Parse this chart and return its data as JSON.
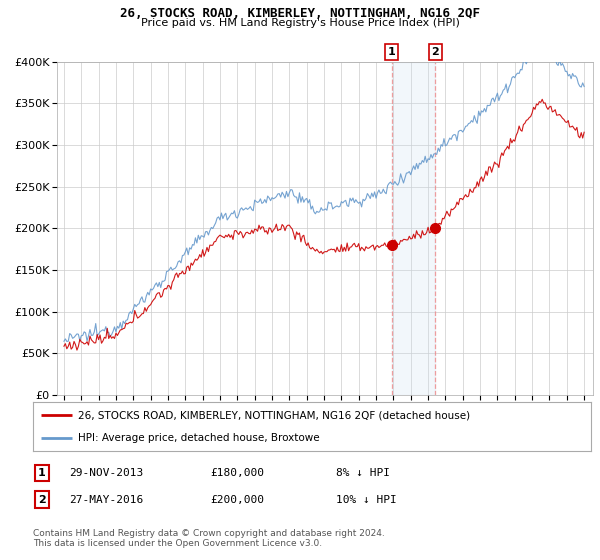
{
  "title": "26, STOCKS ROAD, KIMBERLEY, NOTTINGHAM, NG16 2QF",
  "subtitle": "Price paid vs. HM Land Registry's House Price Index (HPI)",
  "ylim": [
    0,
    400000
  ],
  "yticks": [
    0,
    50000,
    100000,
    150000,
    200000,
    250000,
    300000,
    350000,
    400000
  ],
  "sale1_year": 2013.91,
  "sale1_price": 180000,
  "sale2_year": 2016.41,
  "sale2_price": 200000,
  "legend_line1": "26, STOCKS ROAD, KIMBERLEY, NOTTINGHAM, NG16 2QF (detached house)",
  "legend_line2": "HPI: Average price, detached house, Broxtowe",
  "footnote": "Contains HM Land Registry data © Crown copyright and database right 2024.\nThis data is licensed under the Open Government Licence v3.0.",
  "line_color_red": "#cc0000",
  "line_color_blue": "#6699cc",
  "shade_color": "#cce0f0",
  "bg_color": "#ffffff",
  "grid_color": "#cccccc",
  "title_fontsize": 9,
  "subtitle_fontsize": 8
}
